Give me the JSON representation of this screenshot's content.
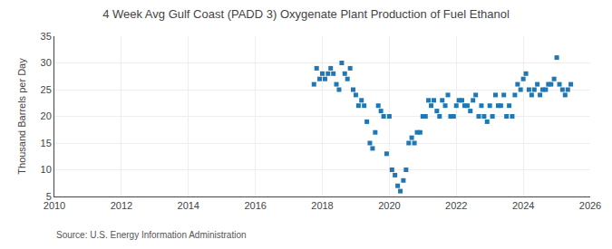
{
  "chart_data": {
    "type": "scatter",
    "title": "4 Week Avg Gulf Coast (PADD 3) Oxygenate Plant Production of Fuel Ethanol",
    "ylabel": "Thousand Barrels per Day",
    "annotations": [
      "Source: U.S. Energy Information Administration"
    ],
    "marker": "square",
    "grid": true,
    "xlim": [
      2010,
      2026
    ],
    "ylim": [
      5,
      35
    ],
    "xticks": [
      2010,
      2012,
      2014,
      2016,
      2018,
      2020,
      2022,
      2024,
      2026
    ],
    "yticks": [
      5,
      10,
      15,
      20,
      25,
      30,
      35
    ],
    "x": [
      2017.75,
      2017.83,
      2017.92,
      2018.0,
      2018.08,
      2018.17,
      2018.25,
      2018.33,
      2018.42,
      2018.5,
      2018.58,
      2018.67,
      2018.75,
      2018.83,
      2018.92,
      2019.0,
      2019.08,
      2019.17,
      2019.25,
      2019.33,
      2019.42,
      2019.5,
      2019.58,
      2019.67,
      2019.75,
      2019.83,
      2019.92,
      2020.0,
      2020.08,
      2020.17,
      2020.25,
      2020.33,
      2020.42,
      2020.5,
      2020.58,
      2020.67,
      2020.75,
      2020.83,
      2020.92,
      2021.0,
      2021.08,
      2021.17,
      2021.25,
      2021.33,
      2021.42,
      2021.5,
      2021.58,
      2021.67,
      2021.75,
      2021.83,
      2021.92,
      2022.0,
      2022.08,
      2022.17,
      2022.25,
      2022.33,
      2022.42,
      2022.5,
      2022.58,
      2022.67,
      2022.75,
      2022.83,
      2022.92,
      2023.0,
      2023.08,
      2023.17,
      2023.25,
      2023.33,
      2023.42,
      2023.5,
      2023.58,
      2023.67,
      2023.75,
      2023.83,
      2023.92,
      2024.0,
      2024.08,
      2024.17,
      2024.25,
      2024.33,
      2024.42,
      2024.5,
      2024.58,
      2024.67,
      2024.75,
      2024.83,
      2024.92,
      2025.0,
      2025.08,
      2025.17,
      2025.25,
      2025.33,
      2025.42
    ],
    "values": [
      26,
      29,
      27,
      28,
      27,
      28,
      29,
      28,
      26,
      25,
      30,
      28,
      27,
      29,
      25,
      24,
      22,
      23,
      22,
      19,
      15,
      14,
      17,
      22,
      21,
      20,
      13,
      20,
      10,
      9,
      7,
      6,
      8,
      10,
      15,
      16,
      15,
      17,
      17,
      20,
      20,
      23,
      22,
      23,
      21,
      20,
      23,
      22,
      24,
      20,
      20,
      22,
      23,
      23,
      22,
      22,
      21,
      23,
      24,
      20,
      22,
      20,
      19,
      22,
      20,
      24,
      22,
      22,
      24,
      20,
      22,
      20,
      24,
      26,
      25,
      27,
      28,
      25,
      24,
      25,
      26,
      24,
      25,
      25,
      26,
      26,
      27,
      31,
      26,
      25,
      24,
      25,
      26
    ]
  }
}
